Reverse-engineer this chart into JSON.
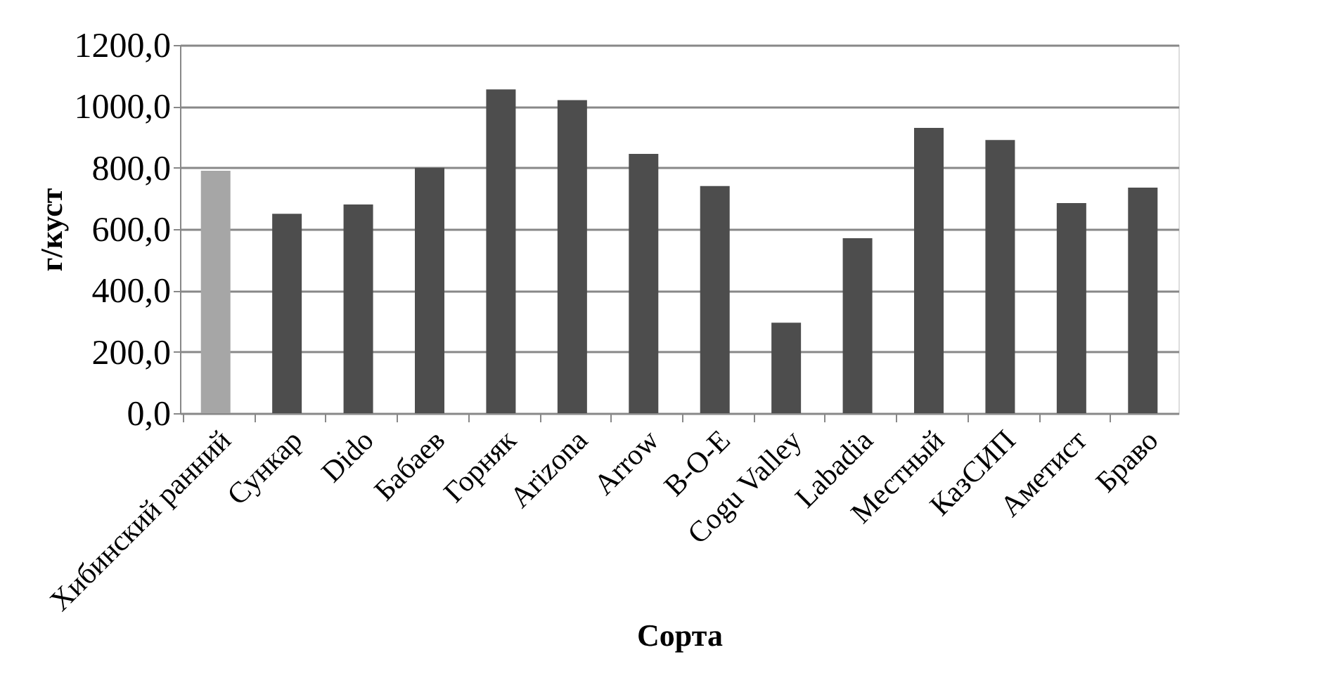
{
  "chart_data": {
    "type": "bar",
    "xlabel": "Сорта",
    "ylabel": "г/куст",
    "categories": [
      "Хибинский ранний",
      "Сункар",
      "Dido",
      "Бабаев",
      "Горняк",
      "Arizona",
      "Arrow",
      "B-O-E",
      "Cogu Valley",
      "Labadia",
      "Местный",
      "КазСИП",
      "Аметист",
      "Браво"
    ],
    "values": [
      790,
      650,
      680,
      800,
      1055,
      1020,
      845,
      740,
      295,
      570,
      930,
      890,
      685,
      735
    ],
    "colors": [
      "#a6a6a6",
      "#4d4d4d",
      "#4d4d4d",
      "#4d4d4d",
      "#4d4d4d",
      "#4d4d4d",
      "#4d4d4d",
      "#4d4d4d",
      "#4d4d4d",
      "#4d4d4d",
      "#4d4d4d",
      "#4d4d4d",
      "#4d4d4d",
      "#4d4d4d"
    ],
    "ylim": [
      0,
      1200
    ],
    "yticks": [
      {
        "value": 0,
        "label": "0,0"
      },
      {
        "value": 200,
        "label": "200,0"
      },
      {
        "value": 400,
        "label": "400,0"
      },
      {
        "value": 600,
        "label": "600,0"
      },
      {
        "value": 800,
        "label": "800,0"
      },
      {
        "value": 1000,
        "label": "1000,0"
      },
      {
        "value": 1200,
        "label": "1200,0"
      }
    ],
    "grid": "y"
  }
}
